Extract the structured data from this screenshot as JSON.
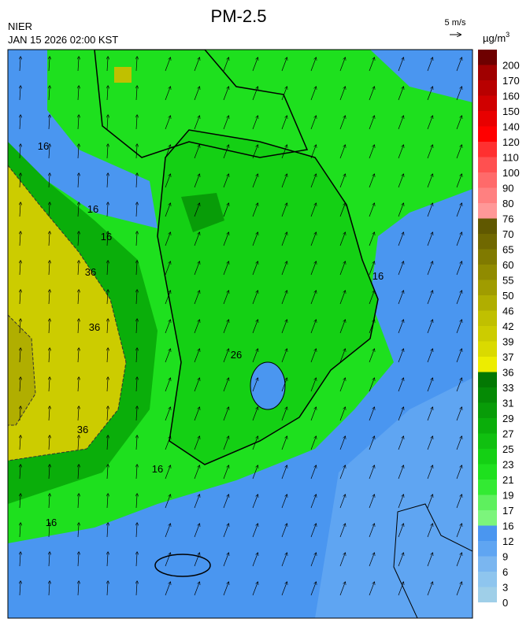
{
  "header": {
    "title": "PM-2.5",
    "agency": "NIER",
    "datetime": "JAN 15 2026 02:00 KST",
    "wind_scale": "5 m/s",
    "unit": "µg/m",
    "unit_power": "3"
  },
  "map": {
    "contour_labels": [
      "16",
      "16",
      "16",
      "36",
      "36",
      "36",
      "16",
      "16",
      "16",
      "26"
    ],
    "colorbar": {
      "ticks": [
        0,
        3,
        6,
        9,
        12,
        16,
        17,
        19,
        21,
        23,
        25,
        27,
        29,
        31,
        33,
        36,
        37,
        39,
        42,
        46,
        50,
        55,
        60,
        65,
        70,
        76,
        80,
        90,
        100,
        110,
        120,
        140,
        150,
        160,
        170,
        200
      ],
      "colors": [
        "#9fcfe8",
        "#8ec5ee",
        "#7ab6f0",
        "#5fa5f2",
        "#4a96f0",
        "#7cf57c",
        "#5ef05e",
        "#33ea33",
        "#1ee01e",
        "#14d014",
        "#10c010",
        "#0aae0a",
        "#089c08",
        "#058a05",
        "#037803",
        "#eded00",
        "#dada00",
        "#cccc00",
        "#c0c000",
        "#b0ae00",
        "#a09c00",
        "#908b00",
        "#807a00",
        "#706800",
        "#605800",
        "#ff9898",
        "#ff8080",
        "#ff6a6a",
        "#ff5050",
        "#ff3030",
        "#ff0000",
        "#e80000",
        "#d00000",
        "#b80000",
        "#a00000",
        "#6e0000"
      ]
    }
  }
}
